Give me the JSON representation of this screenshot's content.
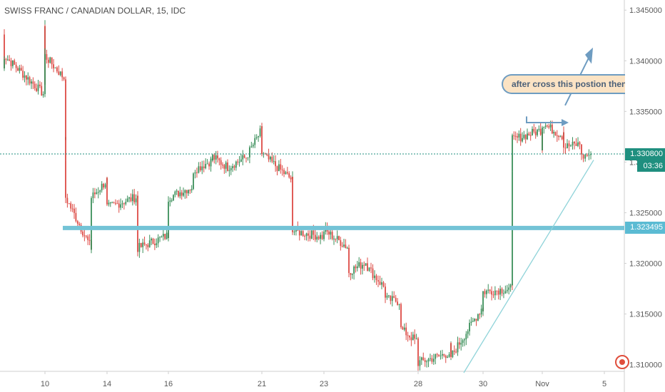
{
  "title": "SWISS FRANC / CANADIAN DOLLAR, 15, IDC",
  "colors": {
    "up": "#3b8f5a",
    "down": "#dd4b45",
    "support_line": "#73c3d6",
    "trend_line": "#8fd3d9",
    "current_price": "#1f8f7f",
    "support_tag": "#5bbbd3",
    "annotation_fill": "#fbe3c4",
    "annotation_border": "#6e9cc1",
    "axis_text": "#5a5a5a",
    "axis_line": "#cfcfcf"
  },
  "annotation": {
    "text": "after cross this postion then yo"
  },
  "current_price": {
    "value": 1.3308,
    "label": "1.330800",
    "countdown": "03:36"
  },
  "support_level": {
    "value": 1.323495,
    "label": "1.323495"
  },
  "logo": {
    "icon": "tradingview-logo-icon"
  },
  "chart_data": {
    "type": "candlestick",
    "title": "SWISS FRANC / CANADIAN DOLLAR, 15, IDC",
    "ylim": [
      1.3073,
      1.346
    ],
    "y_ticks": [
      1.31,
      1.315,
      1.32,
      1.325,
      1.33,
      1.335,
      1.34,
      1.345
    ],
    "y_tick_labels": [
      "1.310000",
      "1.315000",
      "1.320000",
      "1.325000",
      "1.330000",
      "1.335000",
      "1.340000",
      "1.345000"
    ],
    "x_tick_labels": [
      "10",
      "14",
      "16",
      "21",
      "23",
      "28",
      "30",
      "Nov",
      "5"
    ],
    "price_path": [
      [
        "Oct 9",
        1.3426
      ],
      [
        "Oct 9",
        1.3392
      ],
      [
        "Oct 9",
        1.3405
      ],
      [
        "Oct 10",
        1.3366
      ],
      [
        "Oct 10",
        1.3382
      ],
      [
        "Oct 10",
        1.3435
      ],
      [
        "Oct 10",
        1.3376
      ],
      [
        "Oct 10",
        1.3405
      ],
      [
        "Oct 11",
        1.3381
      ],
      [
        "Oct 11",
        1.3318
      ],
      [
        "Oct 11",
        1.3327
      ],
      [
        "Oct 11",
        1.3298
      ],
      [
        "Oct 11",
        1.3265
      ],
      [
        "Oct 12",
        1.3215
      ],
      [
        "Oct 12",
        1.3225
      ],
      [
        "Oct 12",
        1.3228
      ],
      [
        "Oct 12",
        1.3265
      ],
      [
        "Oct 14",
        1.3282
      ],
      [
        "Oct 14",
        1.3255
      ],
      [
        "Oct 15",
        1.3266
      ],
      [
        "Oct 15",
        1.3232
      ],
      [
        "Oct 15",
        1.3215
      ],
      [
        "Oct 16",
        1.3228
      ],
      [
        "Oct 16",
        1.3265
      ],
      [
        "Oct 17",
        1.3276
      ],
      [
        "Oct 17",
        1.3292
      ],
      [
        "Oct 18",
        1.3302
      ],
      [
        "Oct 18",
        1.3305
      ],
      [
        "Oct 19",
        1.3295
      ],
      [
        "Oct 20",
        1.3305
      ],
      [
        "Oct 21",
        1.3332
      ],
      [
        "Oct 21",
        1.3325
      ],
      [
        "Oct 21",
        1.3308
      ],
      [
        "Oct 22",
        1.3282
      ],
      [
        "Oct 22",
        1.3268
      ],
      [
        "Oct 22",
        1.3255
      ],
      [
        "Oct 22",
        1.3232
      ],
      [
        "Oct 23",
        1.3226
      ],
      [
        "Oct 23",
        1.3233
      ],
      [
        "Oct 24",
        1.3215
      ],
      [
        "Oct 24",
        1.3192
      ],
      [
        "Oct 25",
        1.3202
      ],
      [
        "Oct 25",
        1.3196
      ],
      [
        "Oct 26",
        1.3175
      ],
      [
        "Oct 26",
        1.3165
      ],
      [
        "Oct 27",
        1.3162
      ],
      [
        "Oct 27",
        1.3135
      ],
      [
        "Oct 28",
        1.3122
      ],
      [
        "Oct 28",
        1.3115
      ],
      [
        "Oct 28",
        1.3108
      ],
      [
        "Oct 28",
        1.3102
      ],
      [
        "Oct 29",
        1.3112
      ],
      [
        "Oct 29",
        1.3119
      ],
      [
        "Oct 29",
        1.3106
      ],
      [
        "Oct 29",
        1.3108
      ],
      [
        "Oct 30",
        1.3158
      ],
      [
        "Oct 30",
        1.3155
      ],
      [
        "Oct 30",
        1.3162
      ],
      [
        "Oct 30",
        1.3172
      ],
      [
        "Oct 31",
        1.3175
      ],
      [
        "Oct 31",
        1.3255
      ],
      [
        "Oct 31",
        1.3295
      ],
      [
        "Oct 31",
        1.3305
      ],
      [
        "Oct 31",
        1.3322
      ],
      [
        "Nov 1",
        1.3332
      ],
      [
        "Nov 1",
        1.3315
      ],
      [
        "Nov 1",
        1.3335
      ],
      [
        "Nov 1",
        1.3338
      ],
      [
        "Nov 2",
        1.3325
      ],
      [
        "Nov 2",
        1.3333
      ],
      [
        "Nov 2",
        1.3315
      ],
      [
        "Nov 3",
        1.3318
      ],
      [
        "Nov 3",
        1.3305
      ],
      [
        "Nov 4",
        1.3308
      ]
    ]
  }
}
